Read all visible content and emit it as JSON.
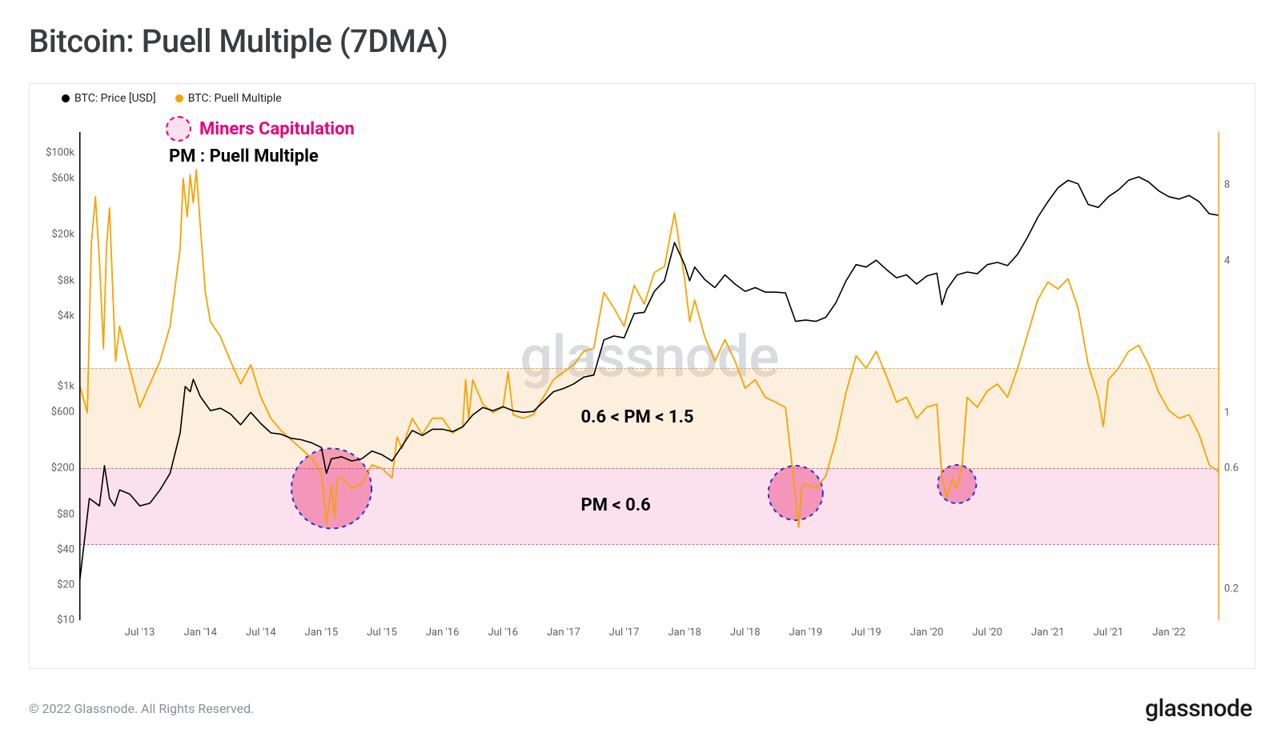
{
  "title": "Bitcoin: Puell Multiple (7DMA)",
  "footer_copy": "© 2022 Glassnode. All Rights Reserved.",
  "footer_logo": "glassnode",
  "watermark": "glassnode",
  "legend": {
    "items": [
      {
        "color": "#000000",
        "label": "BTC: Price [USD]"
      },
      {
        "color": "#f5a300",
        "label": "BTC: Puell Multiple"
      }
    ]
  },
  "annot": {
    "capitulation_label": "Miners Capitulation",
    "capitulation_color": "#e6007a",
    "pm_label": "PM : Puell Multiple",
    "pm_label_color": "#000000",
    "band_mid_label": "0.6 < PM < 1.5",
    "band_low_label": "PM < 0.6",
    "annot_fontsize": 22
  },
  "chart": {
    "type": "dual-axis-line",
    "background": "#ffffff",
    "grid_color": "#f0f0f0",
    "x": {
      "start_month_index": 0,
      "end_month_index": 113,
      "tick_labels": [
        "Jul '13",
        "Jan '14",
        "Jul '14",
        "Jan '15",
        "Jul '15",
        "Jan '16",
        "Jul '16",
        "Jan '17",
        "Jul '17",
        "Jan '18",
        "Jul '18",
        "Jan '19",
        "Jul '19",
        "Jan '20",
        "Jul '20",
        "Jan '21",
        "Jul '21",
        "Jan '22"
      ],
      "tick_positions": [
        6,
        12,
        18,
        24,
        30,
        36,
        42,
        48,
        54,
        60,
        66,
        72,
        78,
        84,
        90,
        96,
        102,
        108
      ]
    },
    "yLeft": {
      "scale": "log",
      "min": 10,
      "max": 150000,
      "ticks": [
        {
          "v": 10,
          "l": "$10"
        },
        {
          "v": 20,
          "l": "$20"
        },
        {
          "v": 40,
          "l": "$40"
        },
        {
          "v": 80,
          "l": "$80"
        },
        {
          "v": 200,
          "l": "$200"
        },
        {
          "v": 600,
          "l": "$600"
        },
        {
          "v": 1000,
          "l": "$1k"
        },
        {
          "v": 4000,
          "l": "$4k"
        },
        {
          "v": 8000,
          "l": "$8k"
        },
        {
          "v": 20000,
          "l": "$20k"
        },
        {
          "v": 60000,
          "l": "$60k"
        },
        {
          "v": 100000,
          "l": "$100k"
        }
      ],
      "line_color": "#000000",
      "line_width": 1.6
    },
    "yRight": {
      "scale": "log",
      "min": 0.15,
      "max": 13,
      "ticks": [
        {
          "v": 0.2,
          "l": "0.2"
        },
        {
          "v": 0.6,
          "l": "0.6"
        },
        {
          "v": 1,
          "l": "1"
        },
        {
          "v": 4,
          "l": "4"
        },
        {
          "v": 8,
          "l": "8"
        }
      ],
      "line_color": "#f5a300",
      "line_width": 1.8
    },
    "bands": {
      "low": {
        "from": 0.3,
        "to": 0.6,
        "fill": "rgba(243,170,205,0.35)",
        "line_color": "#e35c7a"
      },
      "mid": {
        "from": 0.6,
        "to": 1.5,
        "fill": "rgba(250,210,160,0.35)",
        "line_color": "#e8a24a"
      }
    },
    "capitulation_circles": [
      {
        "x": 25,
        "r": 50,
        "yR": 0.5
      },
      {
        "x": 71,
        "r": 34,
        "yR": 0.48
      },
      {
        "x": 87,
        "r": 24,
        "yR": 0.52
      }
    ],
    "capitulation_style": {
      "fill": "rgba(232, 60, 120, 0.45)",
      "stroke": "#2a2ed6",
      "dash": "5,5",
      "stroke_width": 2
    },
    "price_series": [
      [
        0,
        20
      ],
      [
        1,
        110
      ],
      [
        2,
        95
      ],
      [
        2.5,
        210
      ],
      [
        3,
        110
      ],
      [
        3.5,
        95
      ],
      [
        4,
        130
      ],
      [
        5,
        120
      ],
      [
        6,
        95
      ],
      [
        7,
        100
      ],
      [
        8,
        130
      ],
      [
        9,
        180
      ],
      [
        10,
        400
      ],
      [
        10.5,
        1000
      ],
      [
        11,
        900
      ],
      [
        11.3,
        1150
      ],
      [
        12,
        820
      ],
      [
        13,
        620
      ],
      [
        14,
        650
      ],
      [
        15,
        580
      ],
      [
        16,
        470
      ],
      [
        17,
        600
      ],
      [
        18,
        480
      ],
      [
        19,
        400
      ],
      [
        20,
        390
      ],
      [
        21,
        360
      ],
      [
        22,
        350
      ],
      [
        23,
        330
      ],
      [
        24,
        300
      ],
      [
        24.5,
        180
      ],
      [
        25,
        240
      ],
      [
        26,
        250
      ],
      [
        27,
        230
      ],
      [
        28,
        240
      ],
      [
        29,
        280
      ],
      [
        30,
        260
      ],
      [
        31,
        230
      ],
      [
        32,
        310
      ],
      [
        33,
        420
      ],
      [
        34,
        380
      ],
      [
        35,
        430
      ],
      [
        36,
        430
      ],
      [
        37,
        410
      ],
      [
        38,
        450
      ],
      [
        39,
        570
      ],
      [
        40,
        660
      ],
      [
        41,
        620
      ],
      [
        42,
        670
      ],
      [
        43,
        620
      ],
      [
        44,
        600
      ],
      [
        45,
        610
      ],
      [
        46,
        740
      ],
      [
        47,
        900
      ],
      [
        48,
        960
      ],
      [
        49,
        1050
      ],
      [
        50,
        1200
      ],
      [
        51,
        1250
      ],
      [
        52,
        2500
      ],
      [
        53,
        2700
      ],
      [
        54,
        2600
      ],
      [
        55,
        4200
      ],
      [
        56,
        4300
      ],
      [
        57,
        6500
      ],
      [
        58,
        8000
      ],
      [
        59,
        17000
      ],
      [
        60,
        11000
      ],
      [
        60.5,
        8000
      ],
      [
        61,
        10500
      ],
      [
        62,
        8200
      ],
      [
        63,
        7000
      ],
      [
        64,
        9000
      ],
      [
        65,
        7500
      ],
      [
        66,
        6500
      ],
      [
        67,
        7000
      ],
      [
        68,
        6400
      ],
      [
        69,
        6400
      ],
      [
        70,
        6300
      ],
      [
        71,
        3600
      ],
      [
        72,
        3700
      ],
      [
        73,
        3600
      ],
      [
        74,
        3900
      ],
      [
        75,
        5200
      ],
      [
        76,
        8000
      ],
      [
        77,
        11000
      ],
      [
        78,
        10500
      ],
      [
        79,
        12000
      ],
      [
        80,
        10000
      ],
      [
        81,
        8500
      ],
      [
        82,
        9000
      ],
      [
        83,
        7500
      ],
      [
        84,
        8800
      ],
      [
        85,
        9300
      ],
      [
        85.5,
        5000
      ],
      [
        86,
        6800
      ],
      [
        87,
        9000
      ],
      [
        88,
        9500
      ],
      [
        89,
        9200
      ],
      [
        90,
        11000
      ],
      [
        91,
        11500
      ],
      [
        92,
        10800
      ],
      [
        93,
        13500
      ],
      [
        94,
        19000
      ],
      [
        95,
        28000
      ],
      [
        96,
        38000
      ],
      [
        97,
        50000
      ],
      [
        98,
        58000
      ],
      [
        99,
        54000
      ],
      [
        100,
        36000
      ],
      [
        101,
        34000
      ],
      [
        102,
        42000
      ],
      [
        103,
        48000
      ],
      [
        104,
        58000
      ],
      [
        105,
        62000
      ],
      [
        106,
        56000
      ],
      [
        107,
        47000
      ],
      [
        108,
        42000
      ],
      [
        109,
        40000
      ],
      [
        110,
        43000
      ],
      [
        111,
        38000
      ],
      [
        112,
        30000
      ],
      [
        113,
        29000
      ]
    ],
    "puell_series": [
      [
        0,
        1.3
      ],
      [
        0.8,
        1.0
      ],
      [
        1.2,
        4.7
      ],
      [
        1.6,
        7.2
      ],
      [
        2,
        4.0
      ],
      [
        2.4,
        1.8
      ],
      [
        2.7,
        4.5
      ],
      [
        3,
        6.5
      ],
      [
        3.3,
        3.2
      ],
      [
        3.6,
        1.6
      ],
      [
        4,
        2.2
      ],
      [
        5,
        1.5
      ],
      [
        6,
        1.05
      ],
      [
        7,
        1.3
      ],
      [
        8,
        1.6
      ],
      [
        9,
        2.2
      ],
      [
        10,
        4.5
      ],
      [
        10.3,
        8.5
      ],
      [
        10.7,
        6.0
      ],
      [
        11,
        8.8
      ],
      [
        11.3,
        6.8
      ],
      [
        11.6,
        9.2
      ],
      [
        12,
        5.5
      ],
      [
        12.5,
        3.0
      ],
      [
        13,
        2.3
      ],
      [
        14,
        2.0
      ],
      [
        15,
        1.6
      ],
      [
        16,
        1.3
      ],
      [
        17,
        1.55
      ],
      [
        18,
        1.15
      ],
      [
        19,
        0.95
      ],
      [
        20,
        0.85
      ],
      [
        21,
        0.78
      ],
      [
        22,
        0.72
      ],
      [
        23,
        0.66
      ],
      [
        24,
        0.58
      ],
      [
        24.5,
        0.36
      ],
      [
        25,
        0.52
      ],
      [
        25.3,
        0.38
      ],
      [
        25.6,
        0.55
      ],
      [
        26,
        0.55
      ],
      [
        27,
        0.5
      ],
      [
        28,
        0.52
      ],
      [
        29,
        0.62
      ],
      [
        30,
        0.6
      ],
      [
        31,
        0.55
      ],
      [
        31.5,
        0.8
      ],
      [
        32,
        0.72
      ],
      [
        33,
        0.95
      ],
      [
        34,
        0.82
      ],
      [
        35,
        0.95
      ],
      [
        36,
        0.95
      ],
      [
        37,
        0.83
      ],
      [
        38,
        0.88
      ],
      [
        38.3,
        1.35
      ],
      [
        38.6,
        0.95
      ],
      [
        39,
        1.35
      ],
      [
        40,
        1.08
      ],
      [
        41,
        1.0
      ],
      [
        42,
        1.05
      ],
      [
        42.5,
        1.45
      ],
      [
        43,
        0.98
      ],
      [
        44,
        0.95
      ],
      [
        45,
        0.98
      ],
      [
        46,
        1.15
      ],
      [
        47,
        1.35
      ],
      [
        48,
        1.45
      ],
      [
        49,
        1.55
      ],
      [
        50,
        1.75
      ],
      [
        51,
        1.8
      ],
      [
        52,
        3.0
      ],
      [
        53,
        2.6
      ],
      [
        54,
        2.2
      ],
      [
        55,
        3.2
      ],
      [
        56,
        2.7
      ],
      [
        57,
        3.6
      ],
      [
        58,
        3.8
      ],
      [
        59,
        6.2
      ],
      [
        60,
        3.4
      ],
      [
        60.5,
        2.3
      ],
      [
        61,
        2.8
      ],
      [
        62,
        2.0
      ],
      [
        63,
        1.6
      ],
      [
        64,
        1.95
      ],
      [
        65,
        1.6
      ],
      [
        66,
        1.25
      ],
      [
        67,
        1.35
      ],
      [
        68,
        1.15
      ],
      [
        69,
        1.1
      ],
      [
        70,
        1.05
      ],
      [
        70.5,
        0.7
      ],
      [
        71,
        0.46
      ],
      [
        71.3,
        0.35
      ],
      [
        71.6,
        0.5
      ],
      [
        72,
        0.52
      ],
      [
        73,
        0.5
      ],
      [
        74,
        0.56
      ],
      [
        75,
        0.78
      ],
      [
        76,
        1.2
      ],
      [
        77,
        1.68
      ],
      [
        78,
        1.5
      ],
      [
        79,
        1.75
      ],
      [
        80,
        1.4
      ],
      [
        81,
        1.1
      ],
      [
        82,
        1.15
      ],
      [
        83,
        0.95
      ],
      [
        84,
        1.05
      ],
      [
        85,
        1.08
      ],
      [
        85.5,
        0.55
      ],
      [
        86,
        0.46
      ],
      [
        86.5,
        0.55
      ],
      [
        87,
        0.5
      ],
      [
        87.5,
        0.62
      ],
      [
        88,
        1.15
      ],
      [
        89,
        1.05
      ],
      [
        90,
        1.22
      ],
      [
        91,
        1.3
      ],
      [
        92,
        1.15
      ],
      [
        93,
        1.5
      ],
      [
        94,
        2.05
      ],
      [
        95,
        2.8
      ],
      [
        96,
        3.3
      ],
      [
        97,
        3.1
      ],
      [
        98,
        3.4
      ],
      [
        99,
        2.6
      ],
      [
        100,
        1.55
      ],
      [
        101,
        1.15
      ],
      [
        101.5,
        0.88
      ],
      [
        102,
        1.35
      ],
      [
        103,
        1.5
      ],
      [
        104,
        1.75
      ],
      [
        105,
        1.85
      ],
      [
        106,
        1.55
      ],
      [
        107,
        1.2
      ],
      [
        108,
        1.02
      ],
      [
        109,
        0.95
      ],
      [
        110,
        0.98
      ],
      [
        111,
        0.82
      ],
      [
        112,
        0.62
      ],
      [
        113,
        0.58
      ],
      [
        113.3,
        0.32
      ]
    ]
  }
}
